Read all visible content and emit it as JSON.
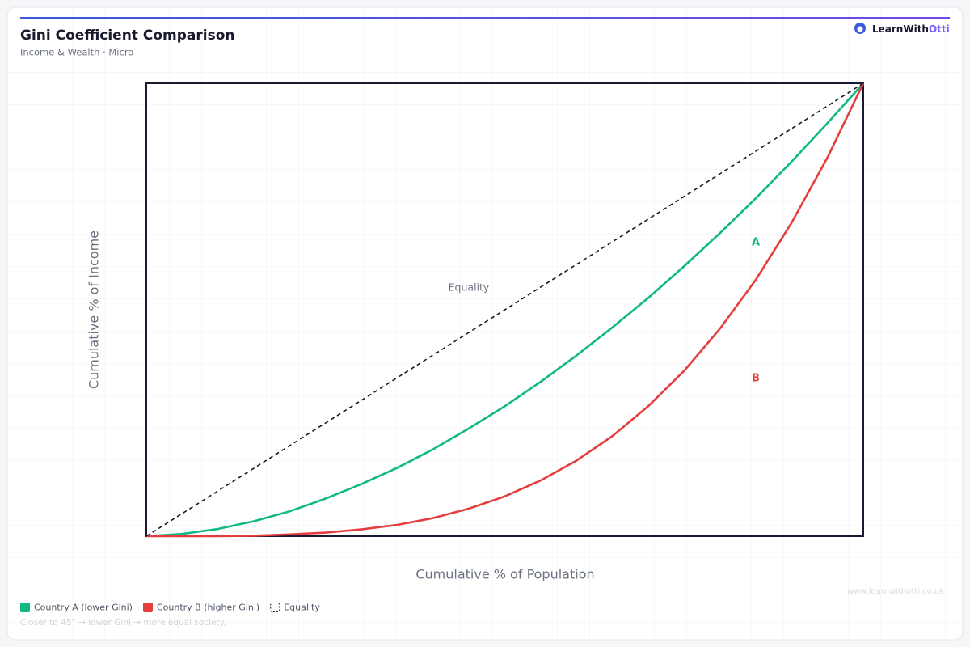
{
  "brand": {
    "name": "LearnWith",
    "highlight": "Otti"
  },
  "footnote": "Closer to 45° → lower Gini → more equal society.",
  "watermark": "www.learnwithotti.co.uk",
  "chart_data": {
    "type": "line",
    "title": "Gini Coefficient Comparison",
    "subtitle": "Income & Wealth · Micro",
    "x_label": "Cumulative % of Population",
    "y_label": "Cumulative % of Income",
    "annotations": [
      "Equality",
      "A",
      "B"
    ],
    "xlim": [
      0,
      100
    ],
    "ylim": [
      0,
      100
    ],
    "x": [
      0,
      5,
      10,
      15,
      20,
      25,
      30,
      35,
      40,
      45,
      50,
      55,
      60,
      65,
      70,
      75,
      80,
      85,
      90,
      95,
      100
    ],
    "series": [
      {
        "name": "Country A (lower Gini)",
        "color": "#10b981",
        "values": [
          0,
          0.5,
          1.6,
          3.3,
          5.5,
          8.3,
          11.5,
          15.1,
          19.2,
          23.8,
          28.7,
          34.1,
          39.9,
          46.1,
          52.6,
          59.6,
          66.9,
          74.6,
          82.7,
          91.2,
          100
        ]
      },
      {
        "name": "Country B (higher Gini)",
        "color": "#e53e3e",
        "values": [
          0,
          0.0,
          0.0,
          0.1,
          0.4,
          0.8,
          1.5,
          2.5,
          4.0,
          6.1,
          8.8,
          12.3,
          16.7,
          22.1,
          28.7,
          36.5,
          45.8,
          56.6,
          69.2,
          83.6,
          100
        ]
      },
      {
        "name": "Equality",
        "color": "#1a1a2e",
        "dashed": true,
        "x": [
          0,
          100
        ],
        "values": [
          0,
          100
        ]
      }
    ]
  }
}
